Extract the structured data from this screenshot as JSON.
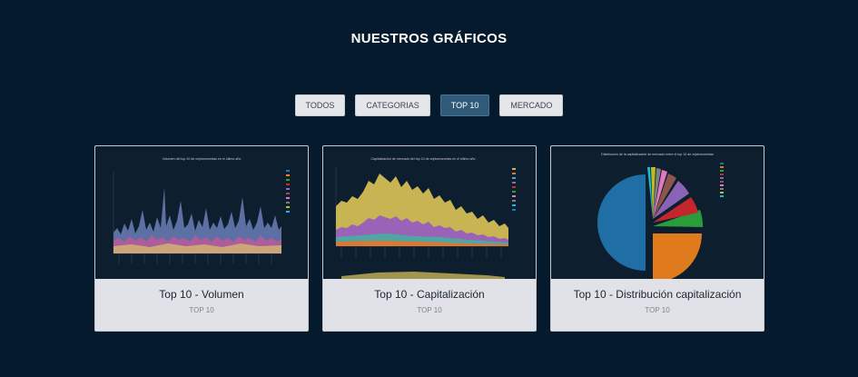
{
  "section_title": "NUESTROS GRÁFICOS",
  "filters": [
    {
      "label": "TODOS",
      "active": false
    },
    {
      "label": "CATEGORIAS",
      "active": false
    },
    {
      "label": "TOP 10",
      "active": true
    },
    {
      "label": "MERCADO",
      "active": false
    }
  ],
  "cards": [
    {
      "title": "Top 10 - Volumen",
      "category": "TOP 10",
      "chart_caption": "Volumen del top 10 de criptomonedas en el último año"
    },
    {
      "title": "Top 10 - Capitalización",
      "category": "TOP 10",
      "chart_caption": "Capitalización de mercado del top 10 de criptomonedas en el último año"
    },
    {
      "title": "Top 10 - Distribución capitalización",
      "category": "TOP 10",
      "chart_caption": "Distribución de la capitalización de mercado entre el top 10 de criptomonedas"
    }
  ],
  "colors": {
    "background": "#051a2c",
    "active_filter": "#2f5b79",
    "card_body": "#e0e2e8"
  }
}
